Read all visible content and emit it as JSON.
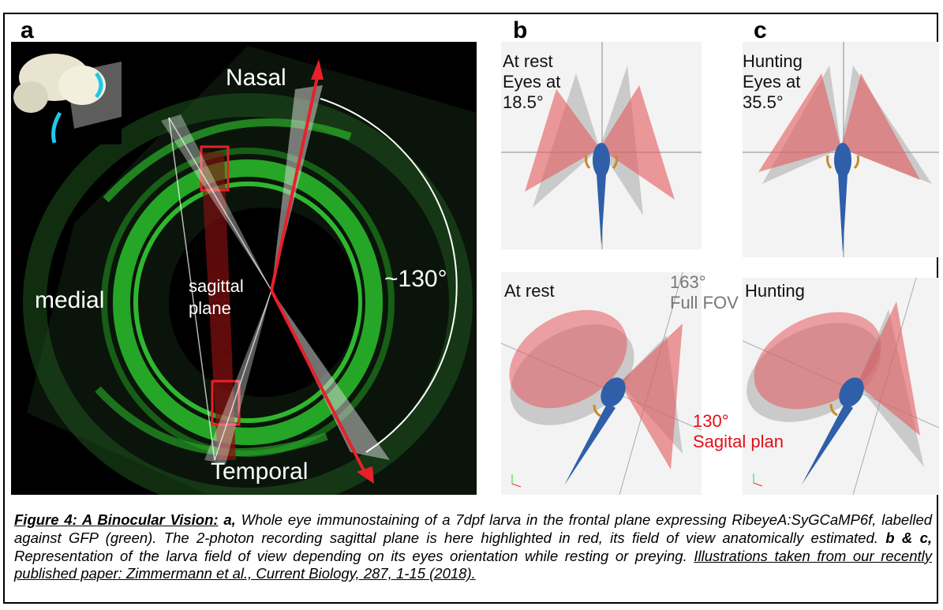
{
  "panels": {
    "a": {
      "letter": "a",
      "labels": {
        "nasal": "Nasal",
        "temporal": "Temporal",
        "medial": "medial",
        "sagittal": "sagittal\nplane",
        "angle": "~130°"
      },
      "colors": {
        "gfp": "#2ecc2e",
        "red": "#e8202a",
        "background": "#000000"
      }
    },
    "b": {
      "letter": "b",
      "top_label": "At rest\nEyes at\n18.5°",
      "bottom_label": "At rest",
      "fov_label": "163°\nFull FOV",
      "sagittal_label": "130°\nSagital plan"
    },
    "c": {
      "letter": "c",
      "top_label": "Hunting\nEyes at\n35.5°",
      "bottom_label": "Hunting"
    }
  },
  "caption": {
    "title": "Figure 4: A Binocular Vision:",
    "a_label": "a,",
    "a_text": "Whole eye immunostaining of a 7dpf larva in the frontal plane expressing RibeyeA:SyGCaMP6f, labelled against GFP (green). The 2-photon recording sagittal plane is here highlighted in red, its field of view anatomically estimated.",
    "bc_label": "b & c,",
    "bc_text": "Representation of the larva field of view depending on its eyes orientation while resting or preying.",
    "source": "Illustrations taken from our recently published paper: Zimmermann et al., Current Biology, 287, 1-15 (2018)."
  },
  "colors": {
    "fov_red": "#e35a5e",
    "fov_grey": "#9a9a9a",
    "larva_blue": "#2f5fa8",
    "fov_label_grey": "#777777",
    "sagittal_red": "#e0101a"
  }
}
